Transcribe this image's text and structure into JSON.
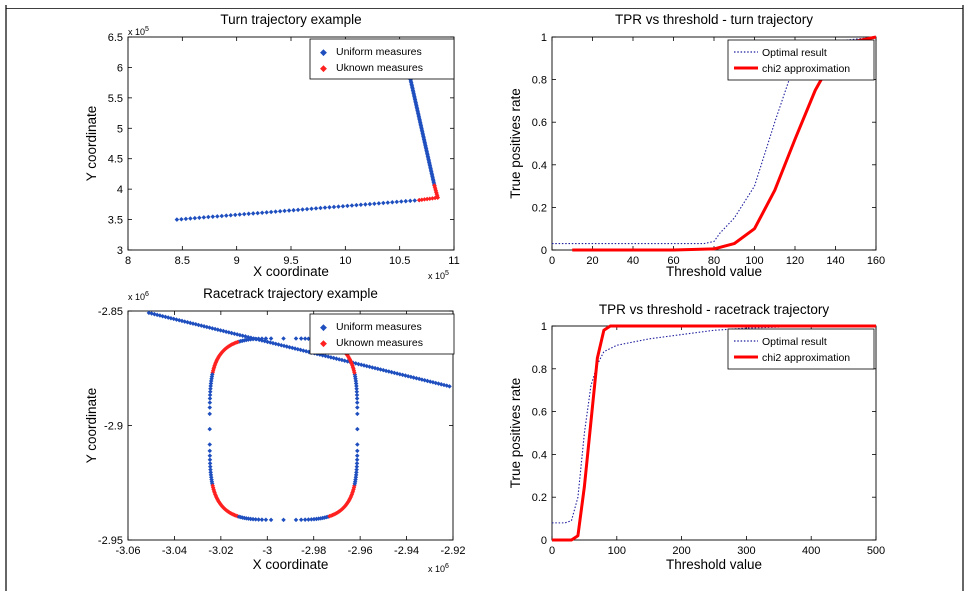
{
  "chart_data": [
    {
      "type": "scatter",
      "title": "Turn trajectory example",
      "xlabel": "X coordinate",
      "ylabel": "Y coordinate",
      "x_exponent": "x 10",
      "x_exponent_power": "5",
      "y_exponent": "x 10",
      "y_exponent_power": "5",
      "xlim": [
        8,
        11
      ],
      "ylim": [
        3,
        6.5
      ],
      "xticks": [
        8,
        8.5,
        9,
        9.5,
        10,
        10.5,
        11
      ],
      "xtick_labels": [
        "8",
        "8.5",
        "9",
        "9.5",
        "10",
        "10.5",
        "11"
      ],
      "yticks": [
        3,
        3.5,
        4,
        4.5,
        5,
        5.5,
        6,
        6.5
      ],
      "ytick_labels": [
        "3",
        "3.5",
        "4",
        "4.5",
        "5",
        "5.5",
        "6",
        "6.5"
      ],
      "grid": false,
      "legend": "top-right",
      "series": [
        {
          "name": "Uniform measures",
          "color": "#1f4fbf",
          "segments": [
            {
              "from": [
                8.45,
                3.5
              ],
              "to": [
                10.68,
                3.82
              ],
              "n": 55
            },
            {
              "from": [
                10.6,
                5.8
              ],
              "to": [
                10.82,
                4.06
              ],
              "n": 70
            }
          ]
        },
        {
          "name": "Uknown measures",
          "color": "#ff2020",
          "segments": [
            {
              "from": [
                10.68,
                3.82
              ],
              "to": [
                10.85,
                3.86
              ],
              "n": 8
            },
            {
              "from": [
                10.85,
                3.86
              ],
              "to": [
                10.82,
                4.06
              ],
              "n": 8
            }
          ]
        }
      ]
    },
    {
      "type": "line",
      "title": "TPR vs threshold - turn trajectory",
      "xlabel": "Threshold value",
      "ylabel": "True positives rate",
      "xlim": [
        0,
        160
      ],
      "ylim": [
        0,
        1
      ],
      "xticks": [
        0,
        20,
        40,
        60,
        80,
        100,
        120,
        140,
        160
      ],
      "xtick_labels": [
        "0",
        "20",
        "40",
        "60",
        "80",
        "100",
        "120",
        "140",
        "160"
      ],
      "yticks": [
        0,
        0.2,
        0.4,
        0.6,
        0.8,
        1
      ],
      "ytick_labels": [
        "0",
        "0.2",
        "0.4",
        "0.6",
        "0.8",
        "1"
      ],
      "grid": false,
      "legend": "top-right",
      "series": [
        {
          "name": "Optimal result",
          "color": "#1f1f9f",
          "style": "dotted",
          "x": [
            0,
            20,
            40,
            60,
            75,
            80,
            83,
            90,
            100,
            110,
            120,
            130,
            140,
            150,
            160
          ],
          "y": [
            0.03,
            0.03,
            0.03,
            0.03,
            0.03,
            0.04,
            0.08,
            0.15,
            0.3,
            0.6,
            0.88,
            0.96,
            0.98,
            0.99,
            1.0
          ]
        },
        {
          "name": "chi2 approximation",
          "color": "#ff0000",
          "style": "solid",
          "x": [
            10,
            20,
            40,
            60,
            80,
            90,
            100,
            110,
            120,
            130,
            140,
            150,
            160
          ],
          "y": [
            0,
            0,
            0,
            0,
            0.005,
            0.03,
            0.1,
            0.28,
            0.52,
            0.75,
            0.92,
            0.98,
            1.0
          ]
        }
      ]
    },
    {
      "type": "scatter",
      "title": "Racetrack trajectory example",
      "xlabel": "X coordinate",
      "ylabel": "Y coordinate",
      "x_exponent": "x 10",
      "x_exponent_power": "6",
      "y_exponent": "x 10",
      "y_exponent_power": "6",
      "xlim": [
        -3.06,
        -2.92
      ],
      "ylim": [
        -2.95,
        -2.85
      ],
      "xticks": [
        -3.06,
        -3.04,
        -3.02,
        -3,
        -2.98,
        -2.96,
        -2.94,
        -2.92
      ],
      "xtick_labels": [
        "-3.06",
        "-3.04",
        "-3.02",
        "-3",
        "-2.98",
        "-2.96",
        "-2.94",
        "-2.92"
      ],
      "yticks": [
        -2.95,
        -2.9,
        -2.85
      ],
      "ytick_labels": [
        "-2.95",
        "-2.9",
        "-2.85"
      ],
      "grid": false,
      "legend": "top-right",
      "series": [
        {
          "name": "Uniform measures",
          "color": "#1f4fbf",
          "track": [
            -3.051,
            -2.8508,
            -2.9215,
            -2.8829
          ],
          "track_n": 110
        },
        {
          "name": "Uknown measures",
          "color": "#ff2020",
          "loop": {
            "cx": -2.993,
            "cy": -2.9016,
            "rx": 0.0318,
            "ry": 0.0396,
            "n": 52
          }
        }
      ]
    },
    {
      "type": "line",
      "title": "TPR vs threshold - racetrack trajectory",
      "xlabel": "Threshold value",
      "ylabel": "True positives rate",
      "xlim": [
        0,
        500
      ],
      "ylim": [
        0,
        1
      ],
      "xticks": [
        0,
        100,
        200,
        300,
        400,
        500
      ],
      "xtick_labels": [
        "0",
        "100",
        "200",
        "300",
        "400",
        "500"
      ],
      "yticks": [
        0,
        0.2,
        0.4,
        0.6,
        0.8,
        1
      ],
      "ytick_labels": [
        "0",
        "0.2",
        "0.4",
        "0.6",
        "0.8",
        "1"
      ],
      "grid": false,
      "legend": "top-right",
      "series": [
        {
          "name": "Optimal result",
          "color": "#1f1f9f",
          "style": "dotted",
          "x": [
            0,
            20,
            30,
            40,
            50,
            60,
            70,
            80,
            100,
            150,
            200,
            250,
            300,
            350,
            400,
            500
          ],
          "y": [
            0.08,
            0.08,
            0.09,
            0.2,
            0.5,
            0.72,
            0.82,
            0.88,
            0.91,
            0.94,
            0.96,
            0.98,
            0.99,
            0.995,
            1.0,
            1.0
          ]
        },
        {
          "name": "chi2 approximation",
          "color": "#ff0000",
          "style": "solid",
          "x": [
            0,
            30,
            40,
            50,
            60,
            70,
            80,
            90,
            100,
            200,
            300,
            400,
            500
          ],
          "y": [
            0,
            0,
            0.02,
            0.25,
            0.55,
            0.85,
            0.98,
            1.0,
            1.0,
            1.0,
            1.0,
            1.0,
            1.0
          ]
        }
      ]
    }
  ]
}
